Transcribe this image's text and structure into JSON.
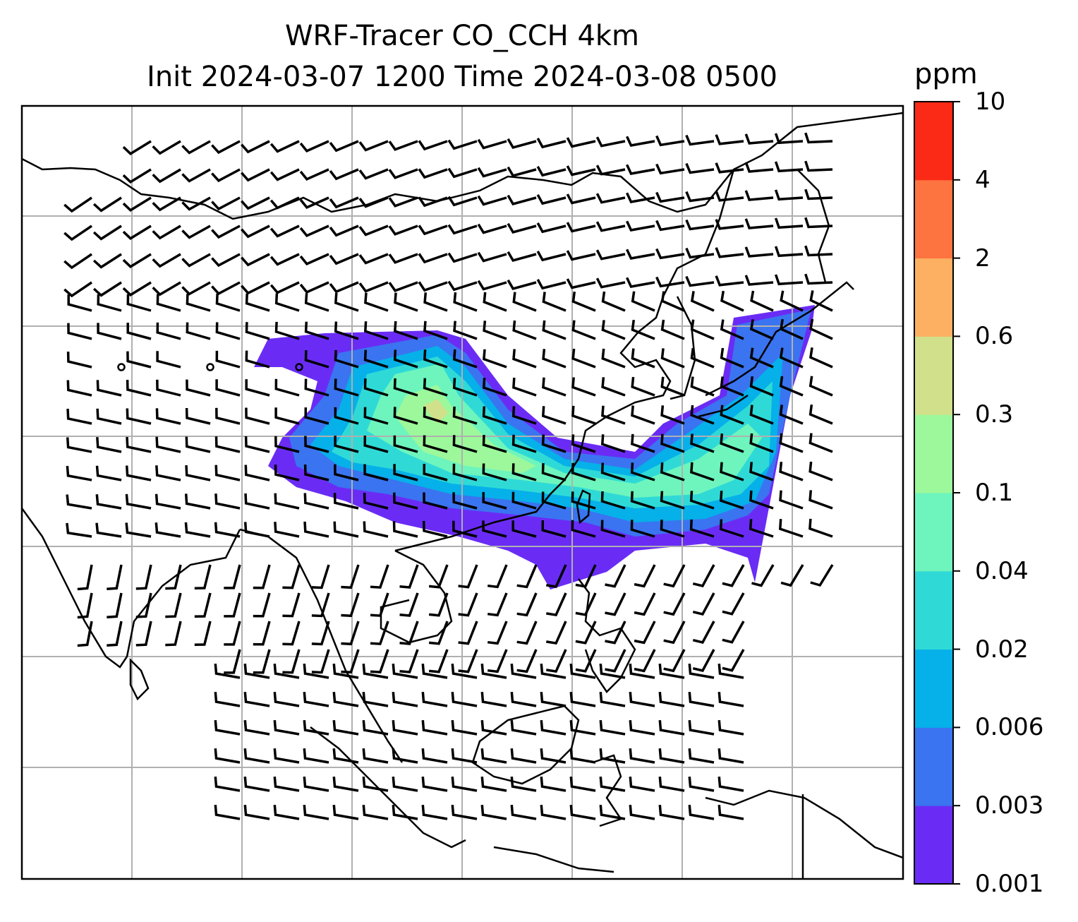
{
  "title": {
    "line1": "WRF-Tracer CO_CCH 4km",
    "line2": "Init 2024-03-07 1200 Time 2024-03-08 0500"
  },
  "colorbar": {
    "unit": "ppm",
    "ticks": [
      "0.001",
      "0.003",
      "0.006",
      "0.02",
      "0.04",
      "0.1",
      "0.3",
      "0.6",
      "2",
      "4",
      "10"
    ],
    "colors": [
      "#6a2cf5",
      "#3a74f0",
      "#06b0e9",
      "#2fdad6",
      "#6df5bd",
      "#9cf89a",
      "#d1e08a",
      "#fdb062",
      "#fe7440",
      "#fb2a17"
    ]
  },
  "map": {
    "type": "tracer concentration plume with wind barbs",
    "coastline_color": "#000000",
    "gridline_color": "#b0b0b0",
    "gridlines": "on"
  }
}
